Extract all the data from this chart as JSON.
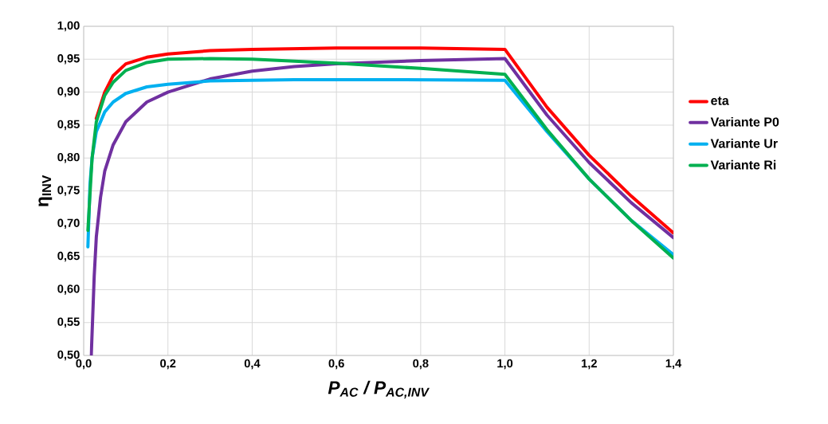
{
  "chart_data": {
    "type": "line",
    "xlabel": "P$_{AC}$ / P$_{AC,INV}$",
    "ylabel": "η$_{INV}$",
    "xlim": [
      0,
      1.4
    ],
    "ylim": [
      0.5,
      1.0
    ],
    "xticks": [
      {
        "value": 0,
        "label": "0,0"
      },
      {
        "value": 0.2,
        "label": "0,2"
      },
      {
        "value": 0.4,
        "label": "0,4"
      },
      {
        "value": 0.6,
        "label": "0,6"
      },
      {
        "value": 0.8,
        "label": "0,8"
      },
      {
        "value": 1.0,
        "label": "1,0"
      },
      {
        "value": 1.2,
        "label": "1,2"
      },
      {
        "value": 1.4,
        "label": "1,4"
      }
    ],
    "yticks": [
      {
        "value": 0.5,
        "label": "0,50"
      },
      {
        "value": 0.55,
        "label": "0,55"
      },
      {
        "value": 0.6,
        "label": "0,60"
      },
      {
        "value": 0.65,
        "label": "0,65"
      },
      {
        "value": 0.7,
        "label": "0,70"
      },
      {
        "value": 0.75,
        "label": "0,75"
      },
      {
        "value": 0.8,
        "label": "0,80"
      },
      {
        "value": 0.85,
        "label": "0,85"
      },
      {
        "value": 0.9,
        "label": "0,90"
      },
      {
        "value": 0.95,
        "label": "0,95"
      },
      {
        "value": 1.0,
        "label": "1,00"
      }
    ],
    "grid": true,
    "legend": "right",
    "marker": "none",
    "line_style": "solid",
    "series": [
      {
        "name": "eta",
        "color": "#ff0000",
        "x": [
          0.03,
          0.05,
          0.07,
          0.1,
          0.15,
          0.2,
          0.3,
          0.4,
          0.6,
          0.8,
          1.0,
          1.1,
          1.2,
          1.3,
          1.4
        ],
        "values": [
          0.86,
          0.9,
          0.925,
          0.943,
          0.953,
          0.958,
          0.963,
          0.965,
          0.967,
          0.967,
          0.965,
          0.877,
          0.804,
          0.742,
          0.686
        ]
      },
      {
        "name": "Variante P0",
        "color": "#7030a0",
        "x": [
          0.018,
          0.025,
          0.03,
          0.04,
          0.05,
          0.07,
          0.1,
          0.15,
          0.2,
          0.3,
          0.4,
          0.5,
          0.6,
          0.8,
          1.0,
          1.1,
          1.2,
          1.3,
          1.4
        ],
        "values": [
          0.5,
          0.62,
          0.68,
          0.74,
          0.78,
          0.82,
          0.855,
          0.885,
          0.9,
          0.92,
          0.932,
          0.939,
          0.943,
          0.948,
          0.951,
          0.865,
          0.793,
          0.732,
          0.679
        ]
      },
      {
        "name": "Variante Ur",
        "color": "#00b0f0",
        "x": [
          0.01,
          0.015,
          0.02,
          0.03,
          0.05,
          0.07,
          0.1,
          0.15,
          0.2,
          0.3,
          0.5,
          0.7,
          1.0,
          1.1,
          1.2,
          1.3,
          1.4
        ],
        "values": [
          0.665,
          0.76,
          0.8,
          0.84,
          0.87,
          0.885,
          0.898,
          0.908,
          0.912,
          0.917,
          0.919,
          0.919,
          0.918,
          0.84,
          0.768,
          0.705,
          0.653
        ]
      },
      {
        "name": "Variante Ri",
        "color": "#00b050",
        "x": [
          0.01,
          0.02,
          0.03,
          0.05,
          0.07,
          0.1,
          0.15,
          0.2,
          0.3,
          0.4,
          0.6,
          0.8,
          1.0,
          1.1,
          1.2,
          1.3,
          1.4
        ],
        "values": [
          0.69,
          0.8,
          0.855,
          0.895,
          0.915,
          0.933,
          0.945,
          0.95,
          0.951,
          0.95,
          0.944,
          0.936,
          0.927,
          0.843,
          0.768,
          0.705,
          0.648
        ]
      }
    ]
  }
}
